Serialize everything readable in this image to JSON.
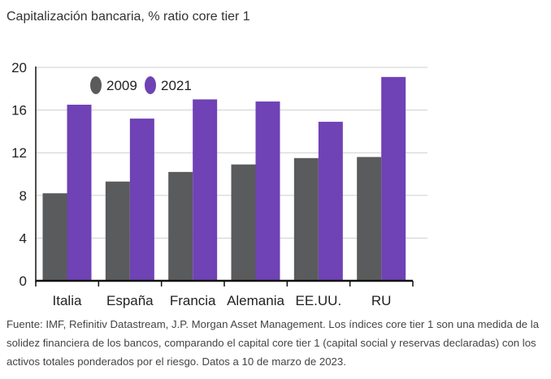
{
  "title": "Capitalización bancaria, % ratio core tier 1",
  "footer": "Fuente: IMF, Refinitiv Datastream, J.P. Morgan Asset Management. Los índices core tier 1 son una medida de la solidez financiera de los bancos, comparando el capital core tier 1 (capital social y reservas declaradas) con los activos totales ponderados por el riesgo. Datos a 10 de marzo de 2023.",
  "chart_data": {
    "type": "bar",
    "title": "Capitalización bancaria, % ratio core tier 1",
    "xlabel": "",
    "ylabel": "",
    "categories": [
      "Italia",
      "España",
      "Francia",
      "Alemania",
      "EE.UU.",
      "RU"
    ],
    "series": [
      {
        "name": "2009",
        "color": "#595b5c",
        "values": [
          8.2,
          9.3,
          10.2,
          10.9,
          11.5,
          11.6
        ]
      },
      {
        "name": "2021",
        "color": "#6f42b5",
        "values": [
          16.5,
          15.2,
          17.0,
          16.8,
          14.9,
          19.1
        ]
      }
    ],
    "ylim": [
      0,
      20
    ],
    "yticks": [
      "0",
      "4",
      "8",
      "12",
      "16",
      "20"
    ],
    "grid": true,
    "legend_position": "top-left"
  }
}
